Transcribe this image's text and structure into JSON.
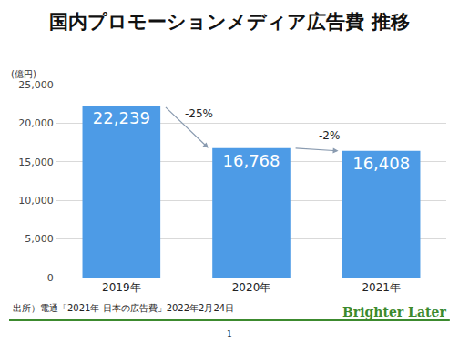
{
  "chart_data": {
    "type": "bar",
    "title": "国内プロモーションメディア広告費 推移",
    "y_label": "(億円)",
    "categories": [
      "2019年",
      "2020年",
      "2021年"
    ],
    "values": [
      22239,
      16768,
      16408
    ],
    "value_labels": [
      "22,239",
      "16,768",
      "16,408"
    ],
    "data_labels": true,
    "color": "#4d9be6",
    "ylim": [
      0,
      25000
    ],
    "yticks": [
      0,
      {
        "value": 5000,
        "label": "5,000"
      },
      {
        "value": 10000,
        "label": "10,000"
      },
      {
        "value": 15000,
        "label": "15,000"
      },
      {
        "value": 20000,
        "label": "20,000"
      },
      {
        "value": 25000,
        "label": "25,000"
      }
    ],
    "grid": true,
    "annotations": [
      {
        "text": "-25%",
        "from": "2019年",
        "to": "2020年"
      },
      {
        "text": "-2%",
        "from": "2020年",
        "to": "2021年"
      }
    ],
    "source": "出所）電通「2021年 日本の広告費」2022年2月24日",
    "footer": "Brighter Later",
    "page": "1"
  }
}
